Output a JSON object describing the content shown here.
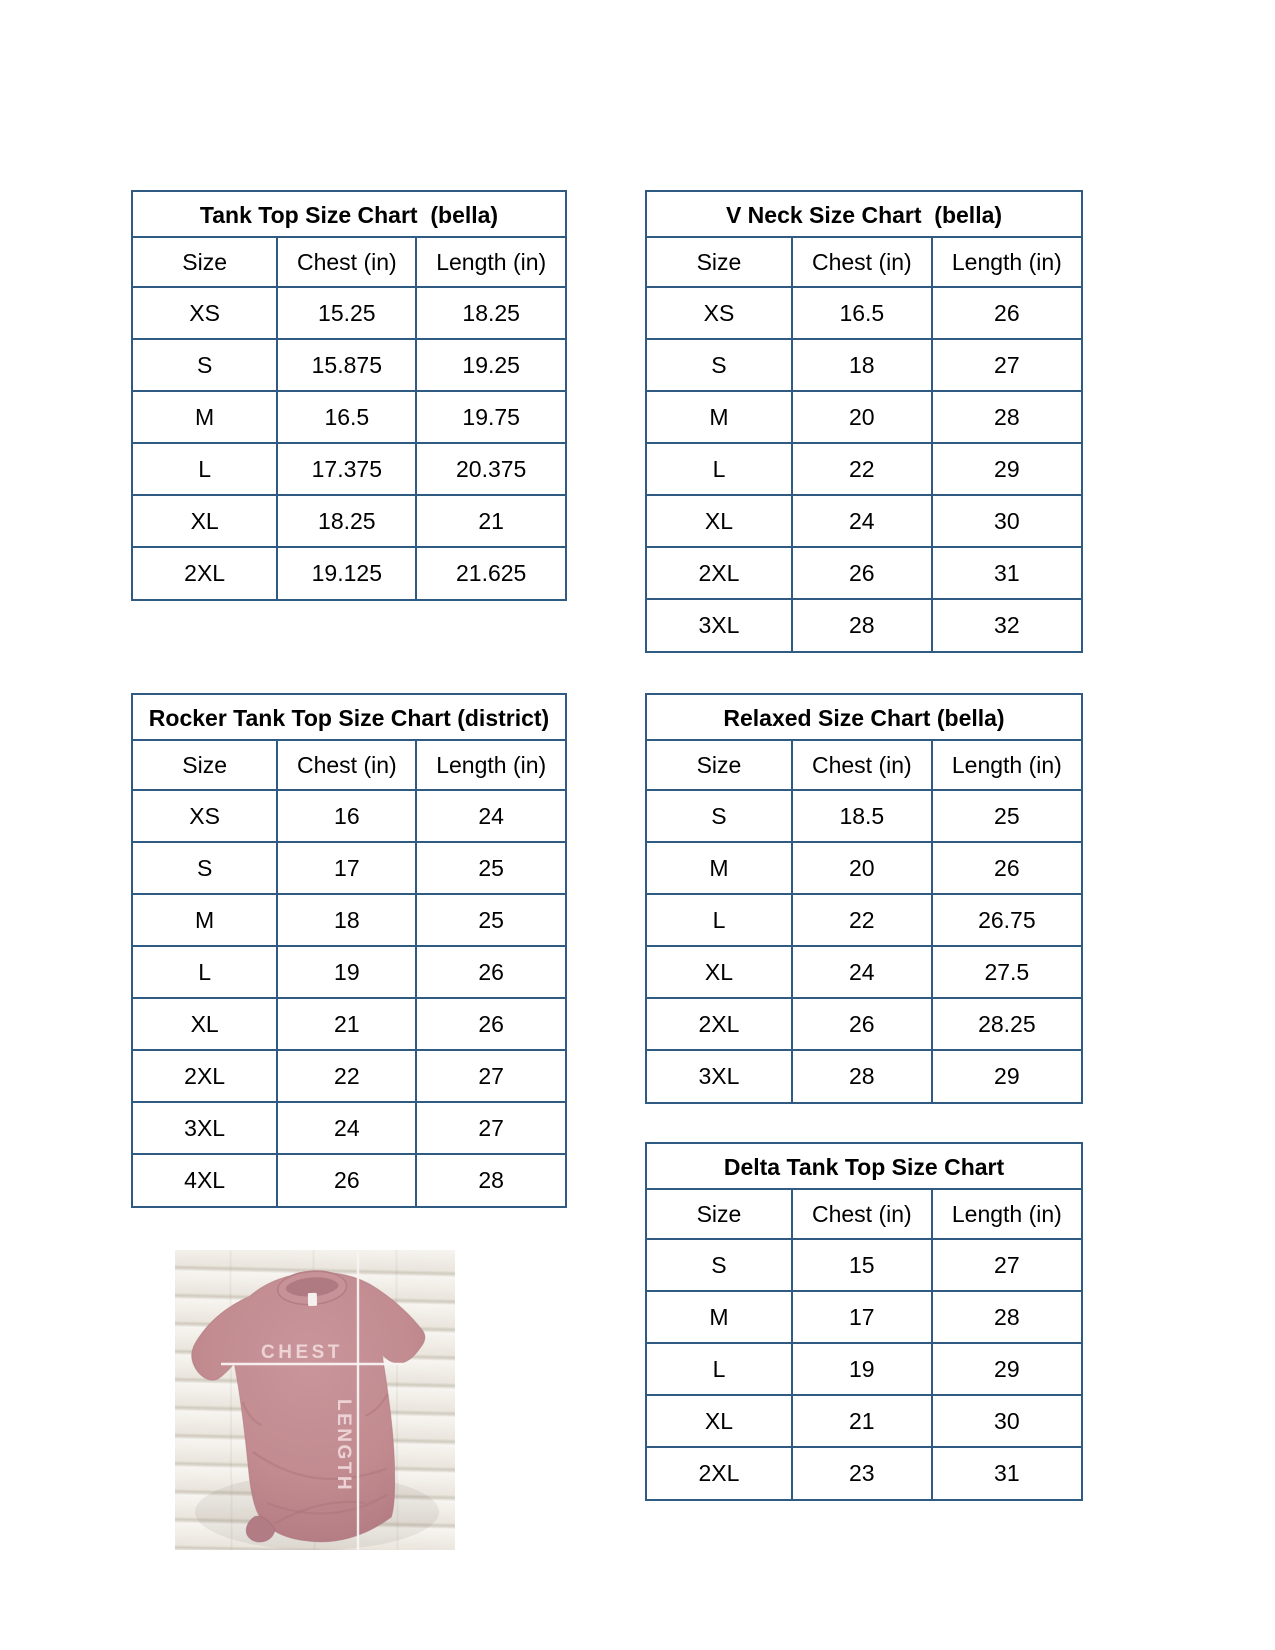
{
  "page": {
    "type": "size-chart-sheet",
    "background": "#ffffff"
  },
  "colors": {
    "table_border": "#2f5b82",
    "text": "#000000",
    "shirt": "#c18b90",
    "shirt_shadow": "#a97379",
    "measure_line": "#f9f3f2",
    "label_pink": "#eed6d8",
    "wood_light": "#f6f4f0",
    "wood_line": "#d2ccc2"
  },
  "tables": [
    {
      "id": "tank-top-bella",
      "title": "Tank Top Size Chart  (bella)",
      "columns": [
        "Size",
        "Chest (in)",
        "Length (in)"
      ],
      "rows": [
        [
          "XS",
          "15.25",
          "18.25"
        ],
        [
          "S",
          "15.875",
          "19.25"
        ],
        [
          "M",
          "16.5",
          "19.75"
        ],
        [
          "L",
          "17.375",
          "20.375"
        ],
        [
          "XL",
          "18.25",
          "21"
        ],
        [
          "2XL",
          "19.125",
          "21.625"
        ]
      ]
    },
    {
      "id": "v-neck-bella",
      "title": "V Neck Size Chart  (bella)",
      "columns": [
        "Size",
        "Chest (in)",
        "Length (in)"
      ],
      "rows": [
        [
          "XS",
          "16.5",
          "26"
        ],
        [
          "S",
          "18",
          "27"
        ],
        [
          "M",
          "20",
          "28"
        ],
        [
          "L",
          "22",
          "29"
        ],
        [
          "XL",
          "24",
          "30"
        ],
        [
          "2XL",
          "26",
          "31"
        ],
        [
          "3XL",
          "28",
          "32"
        ]
      ]
    },
    {
      "id": "rocker-tank-top-district",
      "title": "Rocker Tank Top Size Chart (district)",
      "columns": [
        "Size",
        "Chest (in)",
        "Length (in)"
      ],
      "rows": [
        [
          "XS",
          "16",
          "24"
        ],
        [
          "S",
          "17",
          "25"
        ],
        [
          "M",
          "18",
          "25"
        ],
        [
          "L",
          "19",
          "26"
        ],
        [
          "XL",
          "21",
          "26"
        ],
        [
          "2XL",
          "22",
          "27"
        ],
        [
          "3XL",
          "24",
          "27"
        ],
        [
          "4XL",
          "26",
          "28"
        ]
      ]
    },
    {
      "id": "relaxed-bella",
      "title": "Relaxed Size Chart (bella)",
      "columns": [
        "Size",
        "Chest (in)",
        "Length (in)"
      ],
      "rows": [
        [
          "S",
          "18.5",
          "25"
        ],
        [
          "M",
          "20",
          "26"
        ],
        [
          "L",
          "22",
          "26.75"
        ],
        [
          "XL",
          "24",
          "27.5"
        ],
        [
          "2XL",
          "26",
          "28.25"
        ],
        [
          "3XL",
          "28",
          "29"
        ]
      ]
    },
    {
      "id": "delta-tank-top",
      "title": "Delta Tank Top Size Chart",
      "columns": [
        "Size",
        "Chest (in)",
        "Length (in)"
      ],
      "rows": [
        [
          "S",
          "15",
          "27"
        ],
        [
          "M",
          "17",
          "28"
        ],
        [
          "L",
          "19",
          "29"
        ],
        [
          "XL",
          "21",
          "30"
        ],
        [
          "2XL",
          "23",
          "31"
        ]
      ]
    }
  ],
  "photo": {
    "chest_label": "CHEST",
    "length_label": "LENGTH"
  }
}
